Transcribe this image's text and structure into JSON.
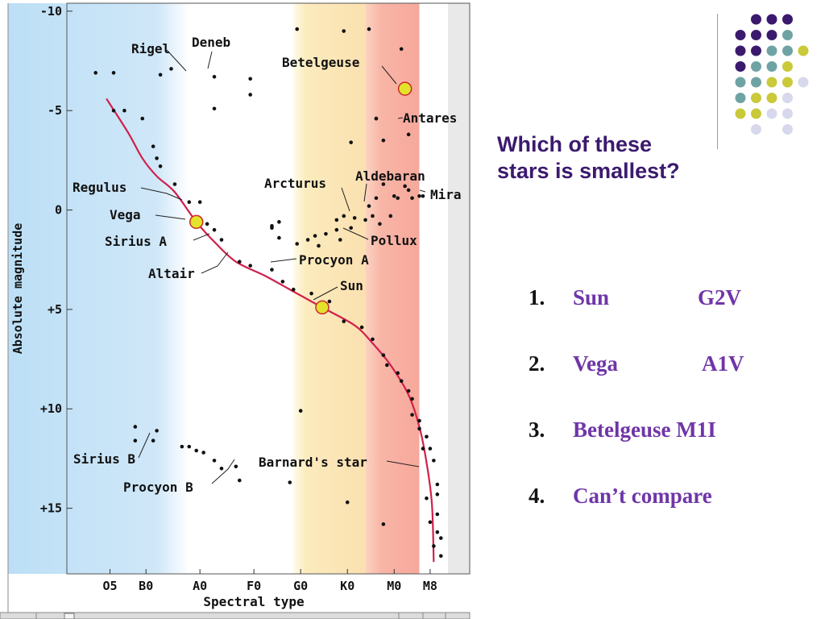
{
  "question": {
    "line1": "Which of these",
    "line2": "stars is smallest?"
  },
  "options": [
    {
      "num": "1.",
      "name": "Sun",
      "type": "G2V"
    },
    {
      "num": "2.",
      "name": "Vega",
      "type": "A1V"
    },
    {
      "num": "3.",
      "name": "Betelgeuse",
      "type": "M1I"
    },
    {
      "num": "4.",
      "name": "Can’t compare",
      "type": ""
    }
  ],
  "colors": {
    "question_text": "#3b1a6e",
    "option_text": "#6f35a8",
    "main_sequence": "#d0204a",
    "highlight_fill": "#e2e32a",
    "highlight_stroke": "#cc2a2a",
    "band_blue": "#cfe6f7",
    "band_yellow": "#fbe9b8",
    "band_red": "#f7b9ad",
    "deco_purple": "#3b1a6e",
    "deco_teal": "#6fa3a3",
    "deco_yellow": "#c9c93a",
    "deco_lavender": "#d8d8ec"
  },
  "chart_data": {
    "type": "scatter",
    "title": "",
    "xlabel": "Spectral type",
    "ylabel": "Absolute magnitude",
    "x_ticks": [
      "O5",
      "B0",
      "A0",
      "F0",
      "G0",
      "K0",
      "M0",
      "M8"
    ],
    "x_tick_pos": [
      0,
      1,
      2.5,
      4,
      5.3,
      6.6,
      7.9,
      8.9
    ],
    "xlim": [
      -1.2,
      10
    ],
    "y_ticks": [
      "-10",
      "-5",
      "0",
      "+5",
      "+10",
      "+15"
    ],
    "y_tick_vals": [
      -10,
      -5,
      0,
      5,
      10,
      15
    ],
    "ylim": [
      -10.4,
      18.3
    ],
    "y_inverted": true,
    "bands": [
      {
        "from": -1.2,
        "to": 2.2,
        "color": "band_blue"
      },
      {
        "from": 5.1,
        "to": 7.1,
        "color": "band_yellow"
      },
      {
        "from": 7.1,
        "to": 8.6,
        "color": "band_red"
      }
    ],
    "main_sequence": [
      [
        -0.1,
        -5.6
      ],
      [
        0.5,
        -3.9
      ],
      [
        0.9,
        -2.6
      ],
      [
        1.3,
        -1.7
      ],
      [
        1.8,
        -0.9
      ],
      [
        2.4,
        0.6
      ],
      [
        2.9,
        1.6
      ],
      [
        3.5,
        2.6
      ],
      [
        4.3,
        3.3
      ],
      [
        5.0,
        4.0
      ],
      [
        5.9,
        4.9
      ],
      [
        6.8,
        5.8
      ],
      [
        7.3,
        6.7
      ],
      [
        7.8,
        7.8
      ],
      [
        8.3,
        9.3
      ],
      [
        8.6,
        10.9
      ],
      [
        8.8,
        12.7
      ],
      [
        8.95,
        14.8
      ],
      [
        9.0,
        17.7
      ]
    ],
    "stars": [
      [
        -0.4,
        -6.9
      ],
      [
        0.1,
        -6.9
      ],
      [
        1.4,
        -6.8
      ],
      [
        1.7,
        -7.1
      ],
      [
        2.9,
        -6.7
      ],
      [
        2.9,
        -5.1
      ],
      [
        5.2,
        -9.1
      ],
      [
        6.5,
        -9.0
      ],
      [
        7.2,
        -9.1
      ],
      [
        8.1,
        -8.1
      ],
      [
        3.9,
        -5.8
      ],
      [
        3.9,
        -6.6
      ],
      [
        7.4,
        -4.6
      ],
      [
        7.6,
        -3.5
      ],
      [
        8.3,
        -3.8
      ],
      [
        6.7,
        -3.4
      ],
      [
        7.4,
        -4.6
      ],
      [
        7.2,
        -0.2
      ],
      [
        7.4,
        -0.6
      ],
      [
        7.6,
        -1.3
      ],
      [
        7.8,
        0.3
      ],
      [
        7.9,
        -0.7
      ],
      [
        8.0,
        -0.6
      ],
      [
        8.2,
        -1.2
      ],
      [
        8.3,
        -1.0
      ],
      [
        8.4,
        -0.6
      ],
      [
        8.6,
        -0.7
      ],
      [
        8.7,
        -0.7
      ],
      [
        7.3,
        0.3
      ],
      [
        7.5,
        0.7
      ],
      [
        7.1,
        0.5
      ],
      [
        6.8,
        0.4
      ],
      [
        6.7,
        0.9
      ],
      [
        6.5,
        0.3
      ],
      [
        6.3,
        0.5
      ],
      [
        6.0,
        1.2
      ],
      [
        5.7,
        1.3
      ],
      [
        5.5,
        1.5
      ],
      [
        5.8,
        1.8
      ],
      [
        5.2,
        1.7
      ],
      [
        4.7,
        1.4
      ],
      [
        4.7,
        0.6
      ],
      [
        4.5,
        0.8
      ],
      [
        4.5,
        0.9
      ],
      [
        6.3,
        1.0
      ],
      [
        6.4,
        1.5
      ],
      [
        0.1,
        -5.0
      ],
      [
        0.4,
        -5.0
      ],
      [
        0.9,
        -4.6
      ],
      [
        1.2,
        -3.2
      ],
      [
        1.3,
        -2.6
      ],
      [
        1.4,
        -2.2
      ],
      [
        1.8,
        -1.3
      ],
      [
        2.2,
        -0.4
      ],
      [
        2.5,
        -0.4
      ],
      [
        2.7,
        0.7
      ],
      [
        2.9,
        1.0
      ],
      [
        3.1,
        1.5
      ],
      [
        3.6,
        2.6
      ],
      [
        3.9,
        2.8
      ],
      [
        4.5,
        3.0
      ],
      [
        4.8,
        3.6
      ],
      [
        5.1,
        4.0
      ],
      [
        5.6,
        4.2
      ],
      [
        6.1,
        4.6
      ],
      [
        6.5,
        5.6
      ],
      [
        7.0,
        5.9
      ],
      [
        7.3,
        6.5
      ],
      [
        7.6,
        7.3
      ],
      [
        7.7,
        7.8
      ],
      [
        8.0,
        8.2
      ],
      [
        8.1,
        8.6
      ],
      [
        8.3,
        9.1
      ],
      [
        8.4,
        9.5
      ],
      [
        8.4,
        10.3
      ],
      [
        8.6,
        10.6
      ],
      [
        8.6,
        11.0
      ],
      [
        8.8,
        11.4
      ],
      [
        8.7,
        12.0
      ],
      [
        8.9,
        12.0
      ],
      [
        9.0,
        12.6
      ],
      [
        9.1,
        13.8
      ],
      [
        8.8,
        14.5
      ],
      [
        9.1,
        14.3
      ],
      [
        9.1,
        15.3
      ],
      [
        8.9,
        15.7
      ],
      [
        9.1,
        16.2
      ],
      [
        9.2,
        16.5
      ],
      [
        9.0,
        16.9
      ],
      [
        9.2,
        17.4
      ],
      [
        5.0,
        13.7
      ],
      [
        6.6,
        14.7
      ],
      [
        7.6,
        15.8
      ],
      [
        0.7,
        10.9
      ],
      [
        0.7,
        11.6
      ],
      [
        1.2,
        11.6
      ],
      [
        1.3,
        11.1
      ],
      [
        2.0,
        11.9
      ],
      [
        2.2,
        11.9
      ],
      [
        2.4,
        12.1
      ],
      [
        2.6,
        12.2
      ],
      [
        2.9,
        12.6
      ],
      [
        3.1,
        13.0
      ],
      [
        3.5,
        12.9
      ],
      [
        3.6,
        13.6
      ],
      [
        5.3,
        10.1
      ]
    ],
    "highlighted": [
      {
        "name": "Betelgeuse",
        "x": 8.2,
        "y": -6.1
      },
      {
        "name": "Vega",
        "x": 2.4,
        "y": 0.6
      },
      {
        "name": "Sun",
        "x": 5.9,
        "y": 4.9
      }
    ],
    "star_labels": [
      "Rigel",
      "Deneb",
      "Betelgeuse",
      "Antares",
      "Regulus",
      "Vega",
      "Sirius A",
      "Altair",
      "Arcturus",
      "Aldebaran",
      "Mira",
      "Pollux",
      "Procyon A",
      "Sun",
      "Sirius B",
      "Procyon B",
      "Barnard's star"
    ]
  }
}
